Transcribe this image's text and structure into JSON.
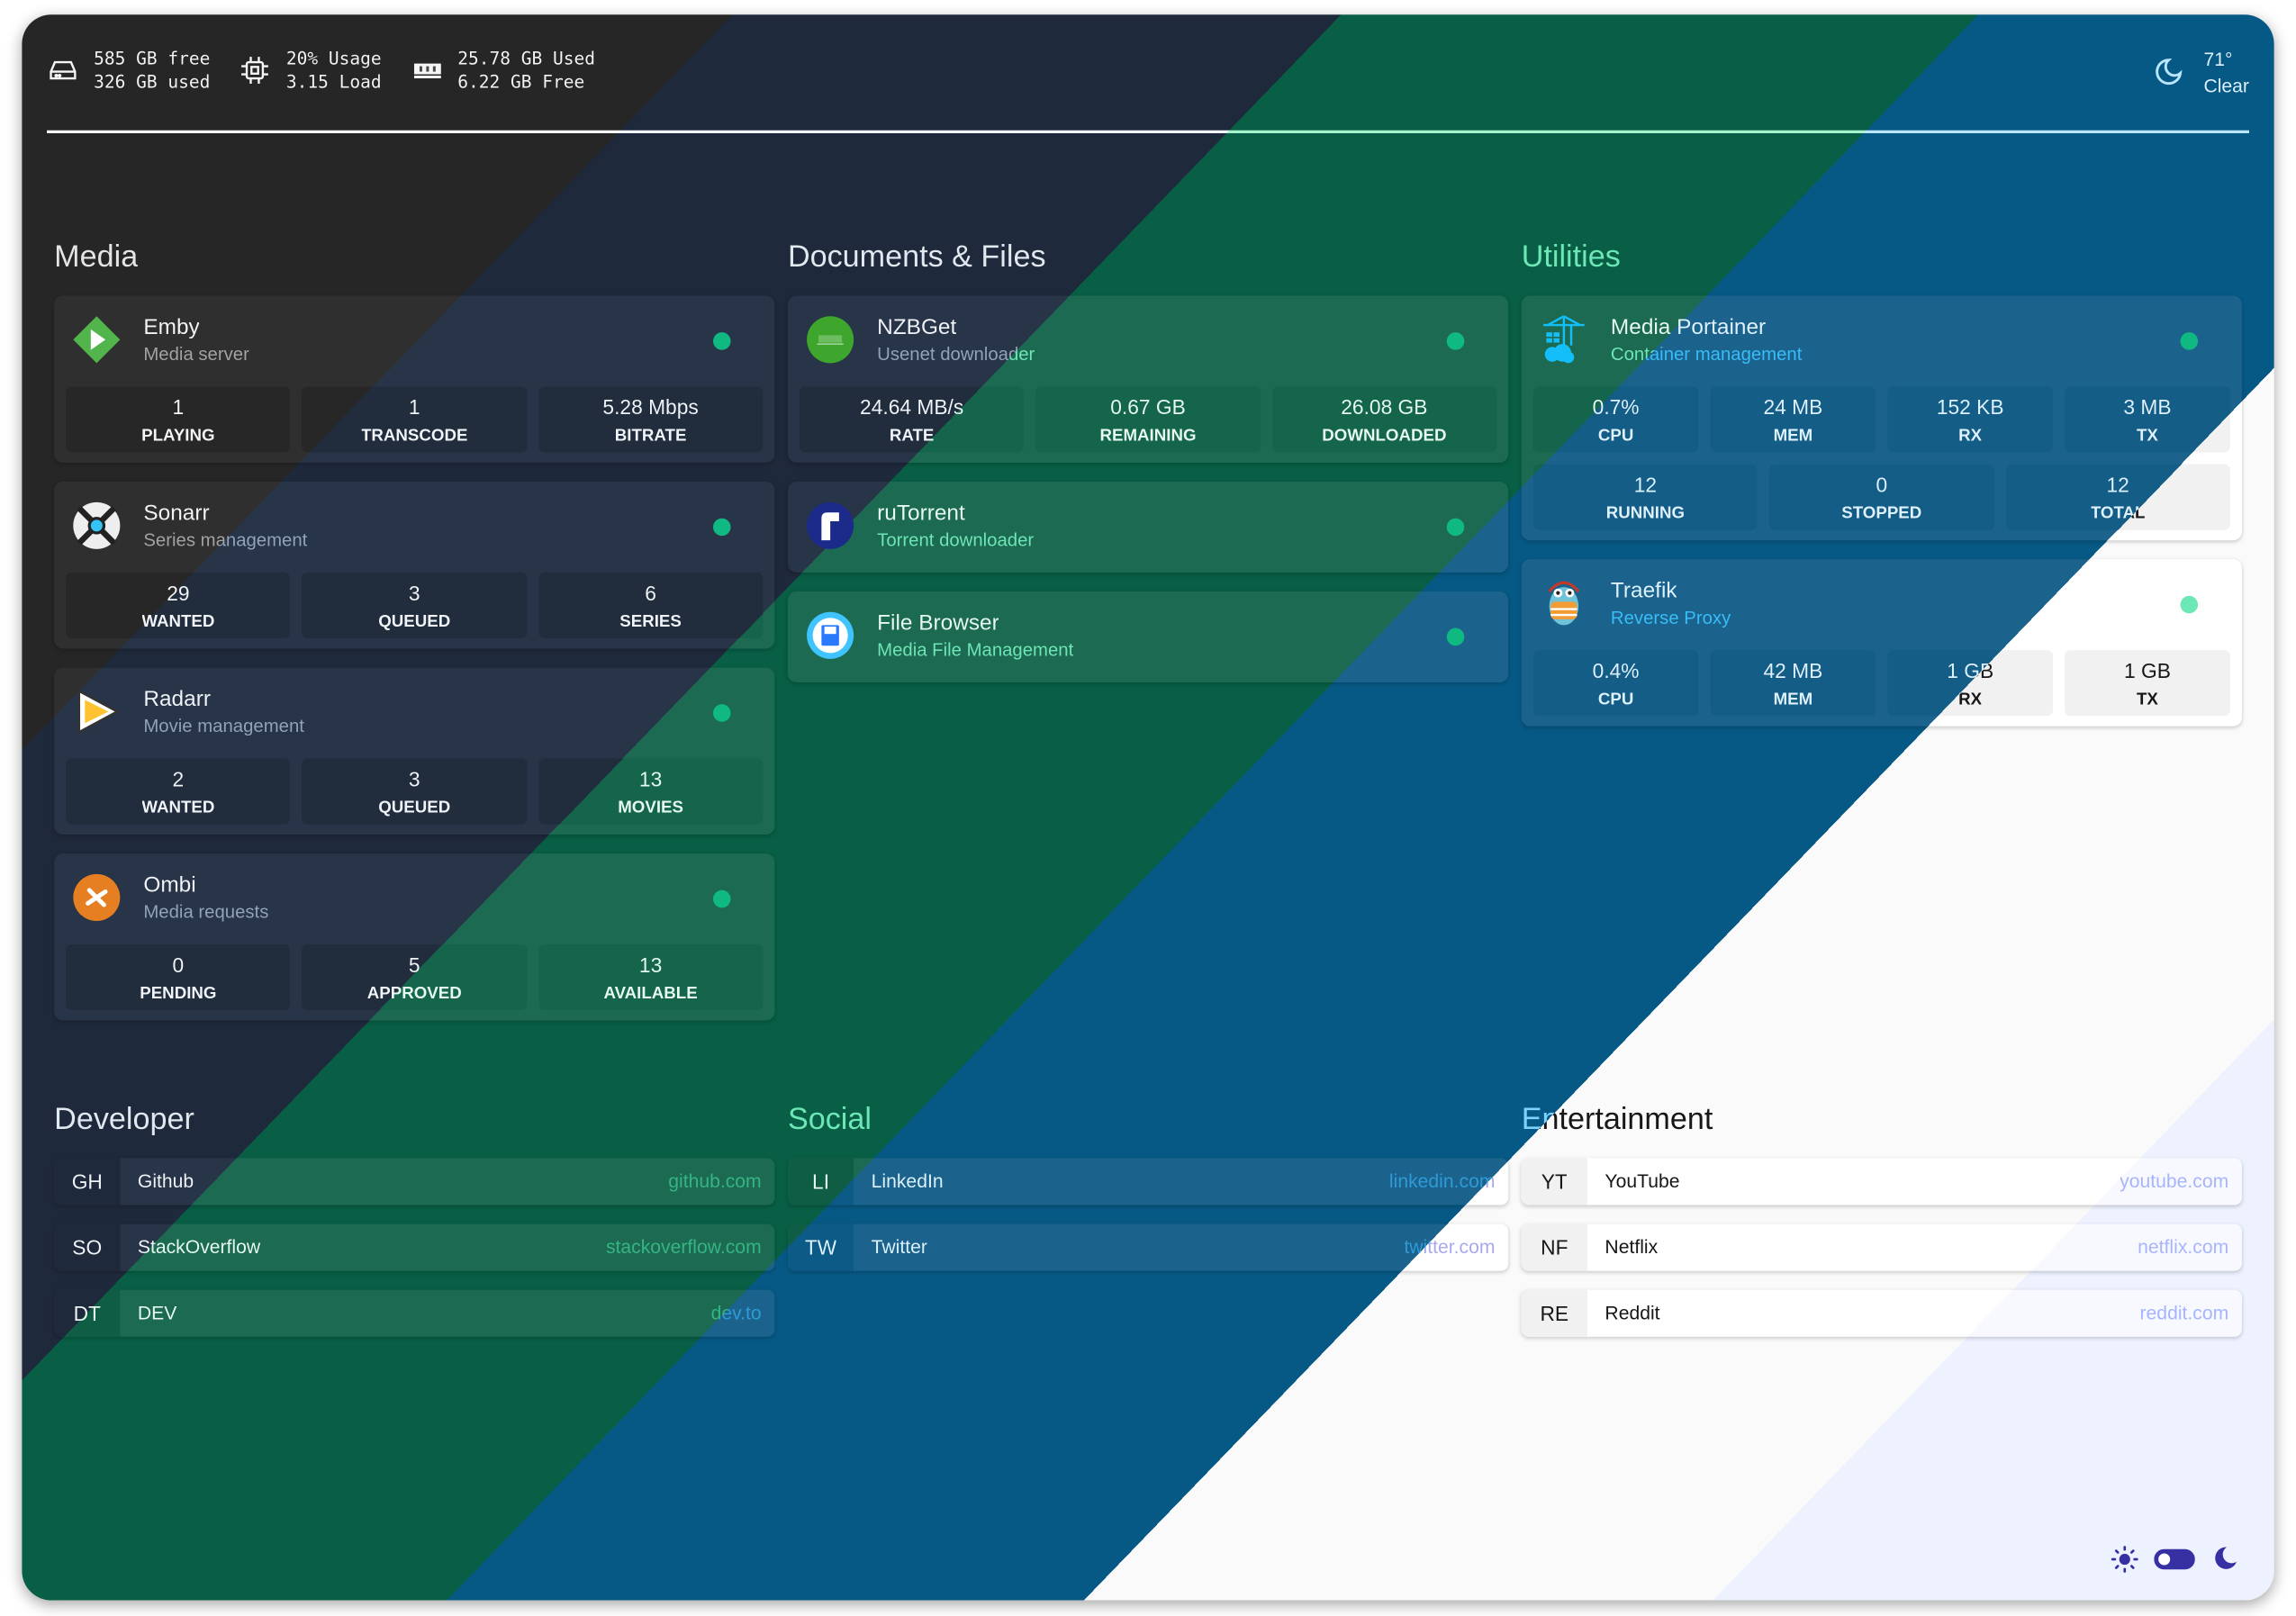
{
  "header": {
    "resources": [
      {
        "icon": "hard-drive-icon",
        "line1": "585 GB free",
        "line2": "326 GB used"
      },
      {
        "icon": "cpu-icon",
        "line1": "20% Usage",
        "line2": "3.15 Load"
      },
      {
        "icon": "memory-icon",
        "line1": "25.78 GB Used",
        "line2": "6.22 GB Free"
      }
    ],
    "weather": {
      "icon": "moon-icon",
      "temperature": "71°",
      "condition": "Clear"
    }
  },
  "services": [
    {
      "title": "Media",
      "items": [
        {
          "name": "Emby",
          "description": "Media server",
          "icon": "emby-icon",
          "status": "online",
          "stat_rows": [
            [
              {
                "value": "1",
                "label": "PLAYING"
              },
              {
                "value": "1",
                "label": "TRANSCODE"
              },
              {
                "value": "5.28 Mbps",
                "label": "BITRATE"
              }
            ]
          ]
        },
        {
          "name": "Sonarr",
          "description": "Series management",
          "icon": "sonarr-icon",
          "status": "online",
          "stat_rows": [
            [
              {
                "value": "29",
                "label": "WANTED"
              },
              {
                "value": "3",
                "label": "QUEUED"
              },
              {
                "value": "6",
                "label": "SERIES"
              }
            ]
          ]
        },
        {
          "name": "Radarr",
          "description": "Movie management",
          "icon": "radarr-icon",
          "status": "online",
          "stat_rows": [
            [
              {
                "value": "2",
                "label": "WANTED"
              },
              {
                "value": "3",
                "label": "QUEUED"
              },
              {
                "value": "13",
                "label": "MOVIES"
              }
            ]
          ]
        },
        {
          "name": "Ombi",
          "description": "Media requests",
          "icon": "ombi-icon",
          "status": "online",
          "stat_rows": [
            [
              {
                "value": "0",
                "label": "PENDING"
              },
              {
                "value": "5",
                "label": "APPROVED"
              },
              {
                "value": "13",
                "label": "AVAILABLE"
              }
            ]
          ]
        }
      ]
    },
    {
      "title": "Documents & Files",
      "items": [
        {
          "name": "NZBGet",
          "description": "Usenet downloader",
          "icon": "nzbget-icon",
          "logo_text": "nzbget",
          "status": "online",
          "stat_rows": [
            [
              {
                "value": "24.64 MB/s",
                "label": "RATE"
              },
              {
                "value": "0.67 GB",
                "label": "REMAINING"
              },
              {
                "value": "26.08 GB",
                "label": "DOWNLOADED"
              }
            ]
          ]
        },
        {
          "name": "ruTorrent",
          "description": "Torrent downloader",
          "icon": "rutorrent-icon",
          "status": "online",
          "stat_rows": []
        },
        {
          "name": "File Browser",
          "description": "Media File Management",
          "icon": "file-browser-icon",
          "status": "online",
          "stat_rows": []
        }
      ]
    },
    {
      "title": "Utilities",
      "items": [
        {
          "name": "Media Portainer",
          "description": "Container management",
          "icon": "portainer-icon",
          "status": "online",
          "stat_rows": [
            [
              {
                "value": "0.7%",
                "label": "CPU"
              },
              {
                "value": "24 MB",
                "label": "MEM"
              },
              {
                "value": "152 KB",
                "label": "RX"
              },
              {
                "value": "3 MB",
                "label": "TX"
              }
            ],
            [
              {
                "value": "12",
                "label": "RUNNING"
              },
              {
                "value": "0",
                "label": "STOPPED"
              },
              {
                "value": "12",
                "label": "TOTAL"
              }
            ]
          ]
        },
        {
          "name": "Traefik",
          "description": "Reverse Proxy",
          "icon": "traefik-icon",
          "status": "online",
          "stat_rows": [
            [
              {
                "value": "0.4%",
                "label": "CPU"
              },
              {
                "value": "42 MB",
                "label": "MEM"
              },
              {
                "value": "1 GB",
                "label": "RX"
              },
              {
                "value": "1 GB",
                "label": "TX"
              }
            ]
          ]
        }
      ]
    }
  ],
  "bookmarks": [
    {
      "title": "Developer",
      "items": [
        {
          "abbr": "GH",
          "name": "Github",
          "url": "github.com"
        },
        {
          "abbr": "SO",
          "name": "StackOverflow",
          "url": "stackoverflow.com"
        },
        {
          "abbr": "DT",
          "name": "DEV",
          "url": "dev.to"
        }
      ]
    },
    {
      "title": "Social",
      "items": [
        {
          "abbr": "LI",
          "name": "LinkedIn",
          "url": "linkedin.com"
        },
        {
          "abbr": "TW",
          "name": "Twitter",
          "url": "twitter.com"
        }
      ]
    },
    {
      "title": "Entertainment",
      "items": [
        {
          "abbr": "YT",
          "name": "YouTube",
          "url": "youtube.com"
        },
        {
          "abbr": "NF",
          "name": "Netflix",
          "url": "netflix.com"
        },
        {
          "abbr": "RE",
          "name": "Reddit",
          "url": "reddit.com"
        }
      ]
    }
  ],
  "theme_toggle": {
    "icons": [
      "sun-icon",
      "moon-icon"
    ],
    "color": "#3730a3"
  },
  "theme_colors": {
    "dark": "#262626",
    "slate": "#1e293b",
    "emerald": "#065f46",
    "sky": "#075985",
    "white": "#fafafa",
    "indigo": "#eef2ff",
    "status_online": "#10b981"
  }
}
